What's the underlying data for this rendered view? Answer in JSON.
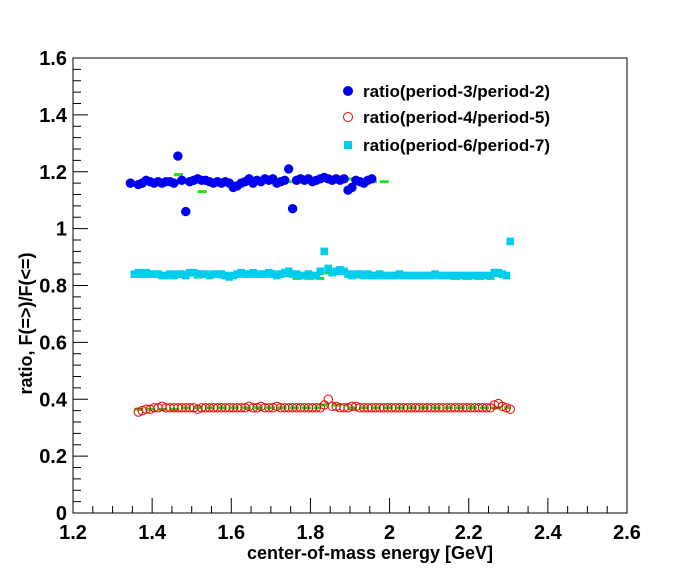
{
  "chart_data": {
    "type": "scatter",
    "title": "",
    "xlabel": "center-of-mass energy [GeV]",
    "ylabel": "ratio, F(=>)/F(<=)",
    "xlim": [
      1.2,
      2.6
    ],
    "ylim": [
      0,
      1.6
    ],
    "xticks": [
      "1.2",
      "1.4",
      "1.6",
      "1.8",
      "2",
      "2.2",
      "2.4",
      "2.6"
    ],
    "yticks": [
      "0",
      "0.2",
      "0.4",
      "0.6",
      "0.8",
      "1",
      "1.2",
      "1.4",
      "1.6"
    ],
    "grid": false,
    "legend_position": "top-right",
    "series": [
      {
        "name": "ratio(period-3/period-2)",
        "marker": "filled-circle",
        "color": "#0000ee",
        "x": [
          1.345,
          1.365,
          1.375,
          1.385,
          1.395,
          1.405,
          1.415,
          1.425,
          1.435,
          1.445,
          1.455,
          1.465,
          1.475,
          1.485,
          1.495,
          1.505,
          1.515,
          1.525,
          1.535,
          1.545,
          1.555,
          1.565,
          1.575,
          1.585,
          1.595,
          1.605,
          1.615,
          1.625,
          1.635,
          1.645,
          1.655,
          1.665,
          1.675,
          1.685,
          1.695,
          1.705,
          1.715,
          1.725,
          1.735,
          1.745,
          1.755,
          1.765,
          1.775,
          1.785,
          1.795,
          1.805,
          1.815,
          1.825,
          1.835,
          1.845,
          1.855,
          1.865,
          1.875,
          1.885,
          1.895,
          1.905,
          1.915,
          1.925,
          1.935,
          1.945,
          1.955
        ],
        "y": [
          1.16,
          1.155,
          1.16,
          1.17,
          1.165,
          1.16,
          1.165,
          1.16,
          1.165,
          1.165,
          1.16,
          1.255,
          1.17,
          1.06,
          1.165,
          1.17,
          1.175,
          1.17,
          1.17,
          1.165,
          1.16,
          1.165,
          1.16,
          1.165,
          1.16,
          1.145,
          1.15,
          1.16,
          1.165,
          1.175,
          1.16,
          1.17,
          1.165,
          1.175,
          1.17,
          1.175,
          1.16,
          1.165,
          1.17,
          1.21,
          1.07,
          1.17,
          1.175,
          1.17,
          1.175,
          1.165,
          1.17,
          1.175,
          1.18,
          1.175,
          1.17,
          1.175,
          1.17,
          1.175,
          1.135,
          1.145,
          1.17,
          1.165,
          1.16,
          1.17,
          1.175
        ]
      },
      {
        "name": "ratio(period-4/period-5)",
        "marker": "open-circle",
        "color": "#ee0000",
        "x": [
          1.365,
          1.375,
          1.385,
          1.395,
          1.405,
          1.415,
          1.425,
          1.435,
          1.445,
          1.455,
          1.465,
          1.475,
          1.485,
          1.495,
          1.505,
          1.515,
          1.525,
          1.535,
          1.545,
          1.555,
          1.565,
          1.575,
          1.585,
          1.595,
          1.605,
          1.615,
          1.625,
          1.635,
          1.645,
          1.655,
          1.665,
          1.675,
          1.685,
          1.695,
          1.705,
          1.715,
          1.725,
          1.735,
          1.745,
          1.755,
          1.765,
          1.775,
          1.785,
          1.795,
          1.805,
          1.815,
          1.825,
          1.835,
          1.845,
          1.855,
          1.865,
          1.875,
          1.885,
          1.895,
          1.905,
          1.915,
          1.925,
          1.935,
          1.945,
          1.955,
          1.965,
          1.975,
          1.985,
          1.995,
          2.005,
          2.015,
          2.025,
          2.035,
          2.045,
          2.055,
          2.065,
          2.075,
          2.085,
          2.095,
          2.105,
          2.115,
          2.125,
          2.135,
          2.145,
          2.155,
          2.165,
          2.175,
          2.185,
          2.195,
          2.205,
          2.215,
          2.225,
          2.235,
          2.245,
          2.255,
          2.265,
          2.275,
          2.285,
          2.295,
          2.305
        ],
        "y": [
          0.355,
          0.36,
          0.365,
          0.365,
          0.37,
          0.37,
          0.375,
          0.37,
          0.37,
          0.37,
          0.37,
          0.37,
          0.37,
          0.37,
          0.37,
          0.365,
          0.37,
          0.37,
          0.37,
          0.37,
          0.37,
          0.37,
          0.37,
          0.37,
          0.37,
          0.37,
          0.37,
          0.37,
          0.375,
          0.37,
          0.37,
          0.375,
          0.37,
          0.37,
          0.37,
          0.375,
          0.37,
          0.37,
          0.37,
          0.37,
          0.37,
          0.37,
          0.37,
          0.37,
          0.37,
          0.37,
          0.37,
          0.38,
          0.4,
          0.375,
          0.375,
          0.37,
          0.37,
          0.37,
          0.375,
          0.375,
          0.37,
          0.37,
          0.37,
          0.37,
          0.37,
          0.37,
          0.37,
          0.37,
          0.37,
          0.37,
          0.37,
          0.37,
          0.37,
          0.37,
          0.37,
          0.37,
          0.37,
          0.37,
          0.37,
          0.37,
          0.37,
          0.37,
          0.37,
          0.37,
          0.37,
          0.37,
          0.37,
          0.37,
          0.37,
          0.37,
          0.37,
          0.37,
          0.37,
          0.37,
          0.38,
          0.385,
          0.375,
          0.37,
          0.365
        ]
      },
      {
        "name": "ratio(period-6/period-7)",
        "marker": "filled-square",
        "color": "#00ccee",
        "x": [
          1.355,
          1.365,
          1.375,
          1.385,
          1.395,
          1.405,
          1.415,
          1.425,
          1.435,
          1.445,
          1.455,
          1.465,
          1.475,
          1.485,
          1.495,
          1.505,
          1.515,
          1.525,
          1.535,
          1.545,
          1.555,
          1.565,
          1.575,
          1.585,
          1.595,
          1.605,
          1.615,
          1.625,
          1.635,
          1.645,
          1.655,
          1.665,
          1.675,
          1.685,
          1.695,
          1.705,
          1.715,
          1.725,
          1.735,
          1.745,
          1.755,
          1.765,
          1.775,
          1.785,
          1.795,
          1.805,
          1.815,
          1.825,
          1.835,
          1.845,
          1.855,
          1.865,
          1.875,
          1.885,
          1.895,
          1.905,
          1.915,
          1.925,
          1.935,
          1.945,
          1.955,
          1.965,
          1.975,
          1.985,
          1.995,
          2.005,
          2.015,
          2.025,
          2.035,
          2.045,
          2.055,
          2.065,
          2.075,
          2.085,
          2.095,
          2.105,
          2.115,
          2.125,
          2.135,
          2.145,
          2.155,
          2.165,
          2.175,
          2.185,
          2.195,
          2.205,
          2.215,
          2.225,
          2.235,
          2.245,
          2.255,
          2.265,
          2.275,
          2.285,
          2.295,
          2.305
        ],
        "y": [
          0.84,
          0.845,
          0.84,
          0.845,
          0.84,
          0.84,
          0.84,
          0.835,
          0.835,
          0.84,
          0.835,
          0.84,
          0.84,
          0.835,
          0.845,
          0.845,
          0.84,
          0.84,
          0.84,
          0.835,
          0.84,
          0.84,
          0.84,
          0.835,
          0.83,
          0.835,
          0.84,
          0.845,
          0.84,
          0.84,
          0.845,
          0.84,
          0.84,
          0.84,
          0.845,
          0.84,
          0.835,
          0.84,
          0.845,
          0.85,
          0.84,
          0.84,
          0.835,
          0.835,
          0.84,
          0.835,
          0.835,
          0.85,
          0.92,
          0.86,
          0.845,
          0.85,
          0.855,
          0.85,
          0.84,
          0.835,
          0.84,
          0.84,
          0.835,
          0.84,
          0.835,
          0.835,
          0.84,
          0.835,
          0.835,
          0.835,
          0.835,
          0.84,
          0.835,
          0.835,
          0.835,
          0.835,
          0.835,
          0.835,
          0.835,
          0.835,
          0.84,
          0.835,
          0.835,
          0.835,
          0.835,
          0.835,
          0.835,
          0.835,
          0.835,
          0.835,
          0.835,
          0.835,
          0.835,
          0.835,
          0.835,
          0.845,
          0.845,
          0.84,
          0.835,
          0.955
        ]
      }
    ],
    "fit_steps": {
      "color": "#22dd22",
      "segments": [
        {
          "x": [
            1.345,
            1.455
          ],
          "y": 1.16
        },
        {
          "x": [
            1.455,
            1.485
          ],
          "y": 1.19
        },
        {
          "x": [
            1.485,
            1.515
          ],
          "y": 1.16
        },
        {
          "x": [
            1.515,
            1.545
          ],
          "y": 1.13
        },
        {
          "x": [
            1.545,
            1.655
          ],
          "y": 1.16
        },
        {
          "x": [
            1.655,
            1.755
          ],
          "y": 1.165
        },
        {
          "x": [
            1.755,
            1.865
          ],
          "y": 1.17
        },
        {
          "x": [
            1.865,
            1.905
          ],
          "y": 1.175
        },
        {
          "x": [
            1.905,
            1.945
          ],
          "y": 1.16
        },
        {
          "x": [
            1.945,
            2.005
          ],
          "y": 1.165
        },
        {
          "x": [
            1.355,
            1.455
          ],
          "y": 0.835
        },
        {
          "x": [
            1.455,
            1.505
          ],
          "y": 0.845
        },
        {
          "x": [
            1.505,
            1.605
          ],
          "y": 0.83
        },
        {
          "x": [
            1.605,
            1.755
          ],
          "y": 0.835
        },
        {
          "x": [
            1.755,
            1.835
          ],
          "y": 0.825
        },
        {
          "x": [
            1.835,
            1.905
          ],
          "y": 0.845
        },
        {
          "x": [
            1.905,
            2.155
          ],
          "y": 0.83
        },
        {
          "x": [
            2.155,
            2.265
          ],
          "y": 0.825
        },
        {
          "x": [
            2.265,
            2.305
          ],
          "y": 0.835
        },
        {
          "x": [
            1.355,
            1.475
          ],
          "y": 0.365
        },
        {
          "x": [
            1.475,
            1.825
          ],
          "y": 0.37
        },
        {
          "x": [
            1.825,
            1.895
          ],
          "y": 0.38
        },
        {
          "x": [
            1.895,
            2.305
          ],
          "y": 0.37
        }
      ]
    }
  }
}
